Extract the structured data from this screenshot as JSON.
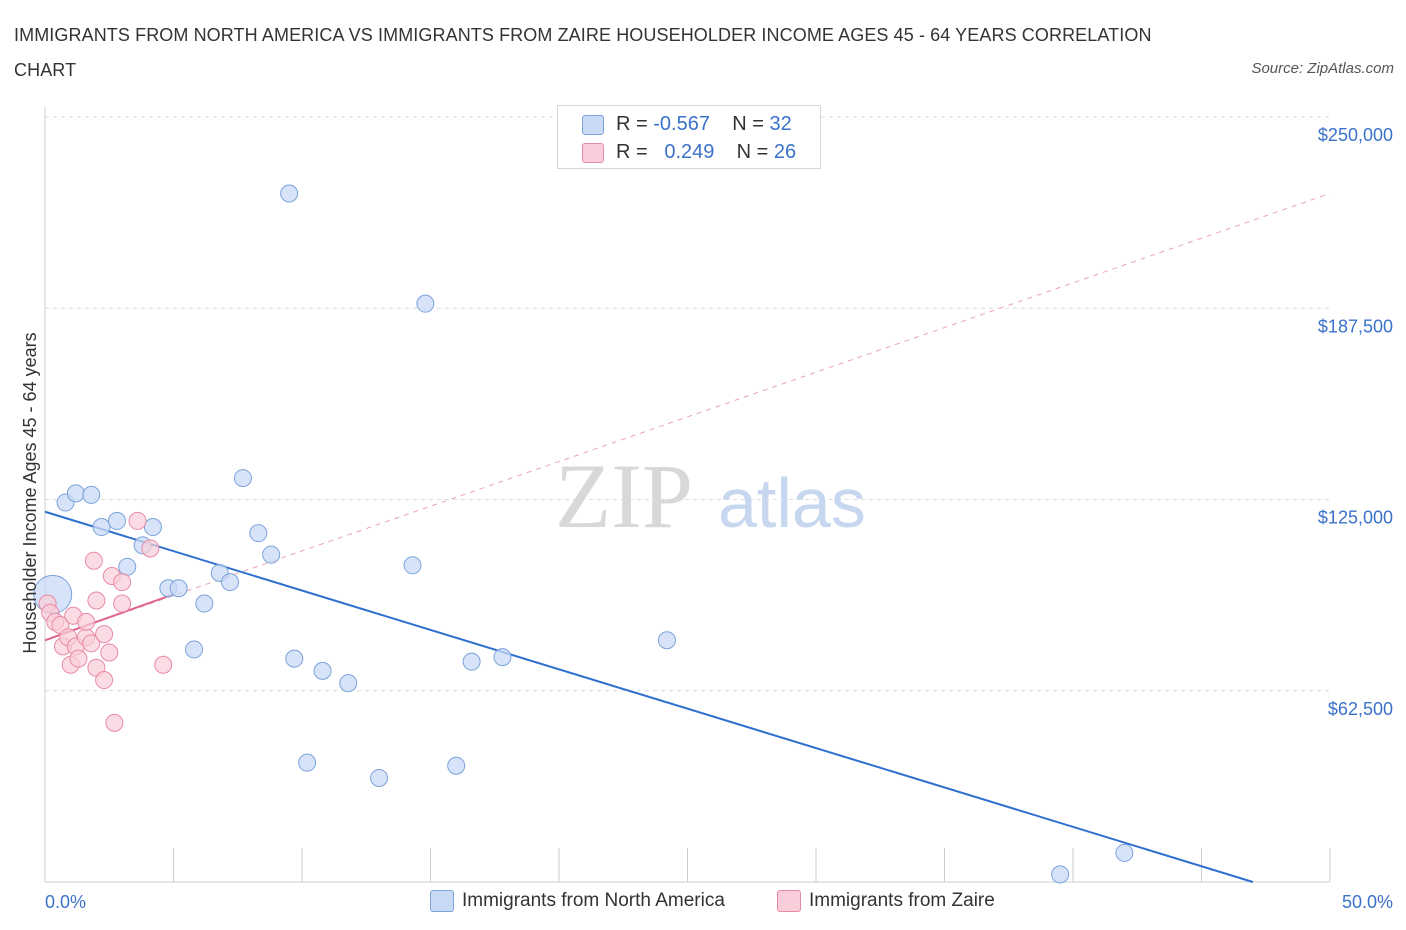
{
  "header": {
    "title": "IMMIGRANTS FROM NORTH AMERICA VS IMMIGRANTS FROM ZAIRE HOUSEHOLDER INCOME AGES 45 - 64 YEARS CORRELATION CHART",
    "source": "Source: ZipAtlas.com"
  },
  "watermark": {
    "zip": "ZIP",
    "atlas": "atlas"
  },
  "legend": {
    "north_america": {
      "r_label": "R =",
      "r_value": "-0.567",
      "n_label": "N =",
      "n_value": "32"
    },
    "zaire": {
      "r_label": "R =",
      "r_value": "0.249",
      "n_label": "N =",
      "n_value": "26"
    }
  },
  "colors": {
    "blue_fill": "#c9daf5",
    "blue_stroke": "#7ba3dc",
    "blue_line": "#2f6fd0",
    "pink_fill": "#f9cdd9",
    "pink_stroke": "#e88aa6",
    "pink_line": "#e0648c",
    "axis_text": "#3a72c9",
    "grid": "#dcdcdc"
  },
  "chart_data": {
    "type": "scatter",
    "title": "IMMIGRANTS FROM NORTH AMERICA VS IMMIGRANTS FROM ZAIRE HOUSEHOLDER INCOME AGES 45 - 64 YEARS CORRELATION CHART",
    "xlabel": "",
    "ylabel": "Householder Income Ages 45 - 64 years",
    "xlim": [
      0,
      50
    ],
    "ylim": [
      0,
      250000
    ],
    "x_tick_labels": {
      "min": "0.0%",
      "max": "50.0%"
    },
    "y_ticks": [
      {
        "value": 250000,
        "label": "$250,000"
      },
      {
        "value": 187500,
        "label": "$187,500"
      },
      {
        "value": 125000,
        "label": "$125,000"
      },
      {
        "value": 62500,
        "label": "$62,500"
      }
    ],
    "grid": true,
    "legend_position": "top-center",
    "series": [
      {
        "name": "Immigrants from North America",
        "color": "blue",
        "points": [
          {
            "x": 0.3,
            "y": 94000,
            "big": true
          },
          {
            "x": 0.8,
            "y": 124000
          },
          {
            "x": 1.2,
            "y": 127000
          },
          {
            "x": 1.8,
            "y": 126500
          },
          {
            "x": 2.2,
            "y": 116000
          },
          {
            "x": 2.8,
            "y": 118000
          },
          {
            "x": 3.2,
            "y": 103000
          },
          {
            "x": 3.8,
            "y": 110000
          },
          {
            "x": 4.2,
            "y": 116000
          },
          {
            "x": 4.8,
            "y": 96000
          },
          {
            "x": 5.2,
            "y": 96000
          },
          {
            "x": 5.8,
            "y": 76000
          },
          {
            "x": 6.2,
            "y": 91000
          },
          {
            "x": 6.8,
            "y": 101000
          },
          {
            "x": 7.2,
            "y": 98000
          },
          {
            "x": 7.7,
            "y": 132000
          },
          {
            "x": 8.3,
            "y": 114000
          },
          {
            "x": 8.8,
            "y": 107000
          },
          {
            "x": 9.5,
            "y": 225000
          },
          {
            "x": 9.7,
            "y": 73000
          },
          {
            "x": 10.2,
            "y": 39000
          },
          {
            "x": 10.8,
            "y": 69000
          },
          {
            "x": 11.8,
            "y": 65000
          },
          {
            "x": 13.0,
            "y": 34000
          },
          {
            "x": 14.3,
            "y": 103500
          },
          {
            "x": 14.8,
            "y": 189000
          },
          {
            "x": 16.0,
            "y": 38000
          },
          {
            "x": 16.6,
            "y": 72000
          },
          {
            "x": 17.8,
            "y": 73500
          },
          {
            "x": 24.2,
            "y": 79000
          },
          {
            "x": 39.5,
            "y": 2500
          },
          {
            "x": 42.0,
            "y": 9500
          }
        ],
        "trendline": {
          "x0": 0,
          "y0": 121000,
          "x1": 47,
          "y1": 0
        }
      },
      {
        "name": "Immigrants from Zaire",
        "color": "pink",
        "points": [
          {
            "x": 0.1,
            "y": 91000
          },
          {
            "x": 0.2,
            "y": 88000
          },
          {
            "x": 0.4,
            "y": 85000
          },
          {
            "x": 0.6,
            "y": 84000
          },
          {
            "x": 0.7,
            "y": 77000
          },
          {
            "x": 0.9,
            "y": 80000
          },
          {
            "x": 1.0,
            "y": 71000
          },
          {
            "x": 1.1,
            "y": 87000
          },
          {
            "x": 1.2,
            "y": 77000
          },
          {
            "x": 1.3,
            "y": 73000
          },
          {
            "x": 1.6,
            "y": 80000
          },
          {
            "x": 1.6,
            "y": 85000
          },
          {
            "x": 1.8,
            "y": 78000
          },
          {
            "x": 1.9,
            "y": 105000
          },
          {
            "x": 2.0,
            "y": 70000
          },
          {
            "x": 2.0,
            "y": 92000
          },
          {
            "x": 2.3,
            "y": 81000
          },
          {
            "x": 2.3,
            "y": 66000
          },
          {
            "x": 2.5,
            "y": 75000
          },
          {
            "x": 2.6,
            "y": 100000
          },
          {
            "x": 2.7,
            "y": 52000
          },
          {
            "x": 3.0,
            "y": 98000
          },
          {
            "x": 3.0,
            "y": 91000
          },
          {
            "x": 3.6,
            "y": 118000
          },
          {
            "x": 4.1,
            "y": 109000
          },
          {
            "x": 4.6,
            "y": 71000
          }
        ],
        "trendline": {
          "x0": 0,
          "y0": 79000,
          "x1": 5,
          "y1": 94000
        },
        "extended_trendline": {
          "x0": 0,
          "y0": 79000,
          "x1": 50,
          "y1": 225000
        }
      }
    ]
  },
  "bottom_legend": {
    "north_america": "Immigrants from North America",
    "zaire": "Immigrants from Zaire"
  }
}
